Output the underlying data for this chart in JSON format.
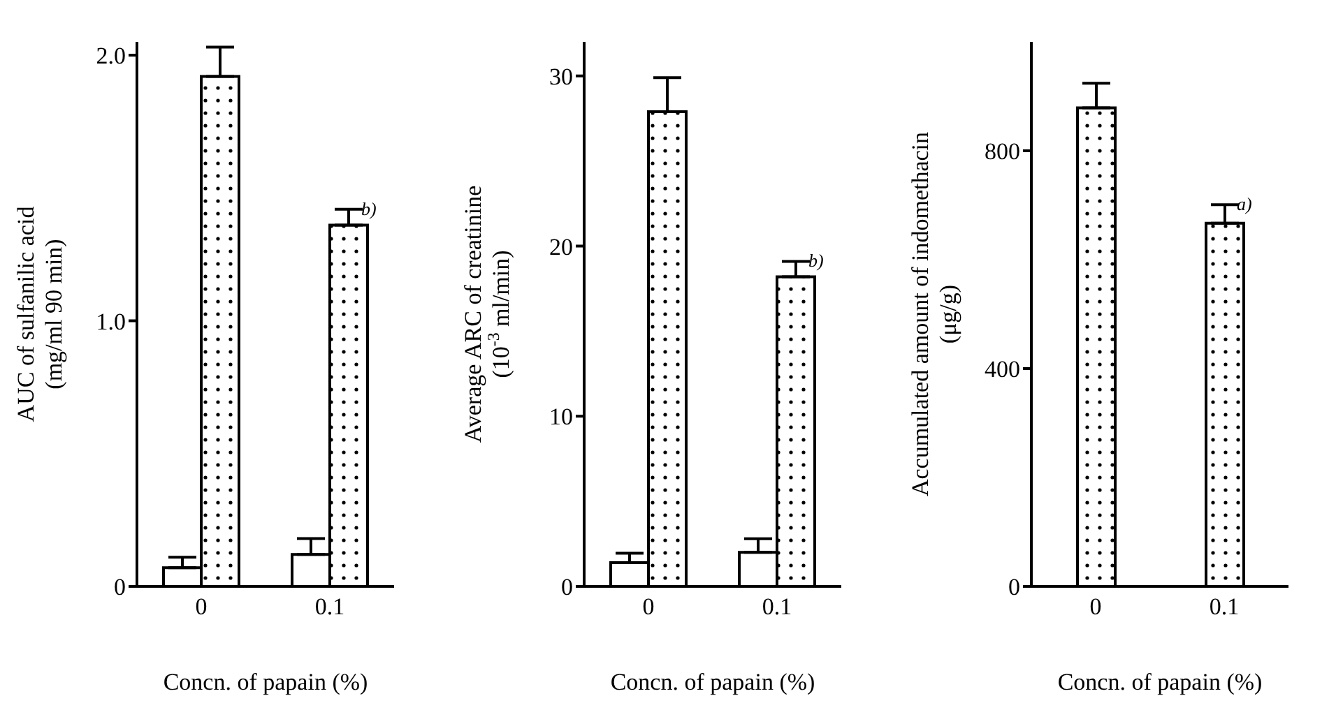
{
  "chart_data": [
    {
      "type": "bar",
      "ylabel": "AUC of sulfanilic acid\n(mg/ml 90 min)",
      "xlabel": "Concn. of papain (%)",
      "categories": [
        "0",
        "0.1"
      ],
      "series": [
        {
          "color": "#ffffff",
          "values": [
            0.07,
            0.12
          ],
          "errors": [
            0.04,
            0.06
          ]
        },
        {
          "color": "#000000",
          "values": [
            1.92,
            1.36
          ],
          "errors": [
            0.11,
            0.06
          ]
        }
      ],
      "ylim": [
        0,
        2.05
      ],
      "yticks": [
        0,
        {
          "value": 1,
          "label": "1.0"
        },
        {
          "value": 2,
          "label": "2.0"
        }
      ],
      "annotations": [
        {
          "text": "b)",
          "x": "0.1",
          "y": 1.42
        }
      ]
    },
    {
      "type": "bar",
      "ylabel": "Average ARC of creatinine\n(10$^{-3}$ ml/min)",
      "xlabel": "Concn. of papain (%)",
      "categories": [
        "0",
        "0.1"
      ],
      "series": [
        {
          "color": "#ffffff",
          "values": [
            1.4,
            2.0
          ],
          "errors": [
            0.55,
            0.8
          ]
        },
        {
          "color": "#000000",
          "values": [
            27.9,
            18.2
          ],
          "errors": [
            2.0,
            0.9
          ]
        }
      ],
      "ylim": [
        0,
        32
      ],
      "yticks": [
        0,
        10,
        20,
        30
      ],
      "annotations": [
        {
          "text": "b)",
          "x": "0.1",
          "y": 19.1
        }
      ]
    },
    {
      "type": "bar",
      "ylabel": "Accumulated amount of indomethacin\n(μg/g)",
      "xlabel": "Concn. of papain (%)",
      "categories": [
        "0",
        "0.1"
      ],
      "series": [
        {
          "color": "#000000",
          "values": [
            879,
            667
          ],
          "errors": [
            45,
            34
          ]
        }
      ],
      "ylim": [
        0,
        1000
      ],
      "yticks": [
        0,
        400,
        800
      ],
      "annotations": [
        {
          "text": "a)",
          "x": "0.1",
          "y": 701
        }
      ]
    }
  ]
}
